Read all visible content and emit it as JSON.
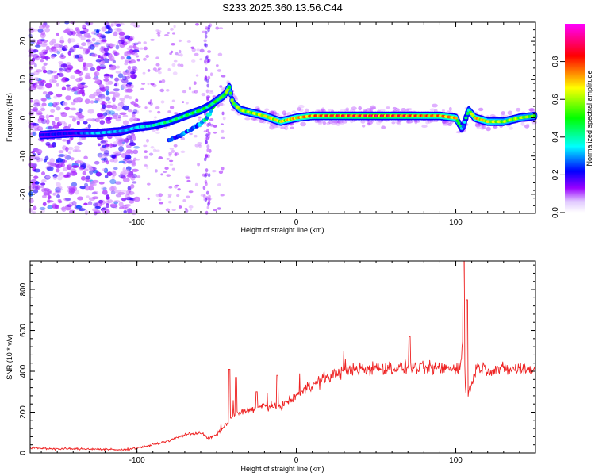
{
  "title": "S233.2025.360.13.56.C44",
  "chart_data": [
    {
      "type": "heatmap",
      "title": "S233.2025.360.13.56.C44",
      "xlabel": "Height of straight line (km)",
      "ylabel": "Frequency (Hz)",
      "xlim": [
        -167,
        150
      ],
      "ylim": [
        -25,
        25
      ],
      "xticks": [
        -100,
        0,
        100
      ],
      "yticks": [
        -20,
        -10,
        0,
        10,
        20
      ],
      "xtick_labels": [
        "-100",
        "0",
        "100"
      ],
      "ytick_labels": [
        "-20",
        "-10",
        "0",
        "10",
        "20"
      ],
      "colorbar": {
        "label": "Normalized spectral amplitude",
        "range": [
          0,
          1
        ],
        "ticks": [
          "0.0",
          "0.2",
          "0.4",
          "0.6",
          "0.8"
        ],
        "colors": [
          "#ffffff",
          "#9900ff",
          "#0000ff",
          "#00ffff",
          "#00ff00",
          "#ffff00",
          "#ff0000",
          "#ff00ff"
        ]
      },
      "ridge": {
        "x": [
          -160,
          -140,
          -125,
          -110,
          -100,
          -90,
          -80,
          -70,
          -60,
          -55,
          -50,
          -45,
          -42,
          -40,
          -35,
          -30,
          -20,
          -10,
          0,
          10,
          20,
          30,
          40,
          50,
          60,
          70,
          80,
          90,
          100,
          104,
          108,
          112,
          120,
          130,
          140,
          150
        ],
        "y": [
          -4.5,
          -4,
          -4,
          -3.5,
          -2.5,
          -2,
          -1,
          0.5,
          2,
          3,
          4.5,
          6,
          8,
          4,
          2,
          1.5,
          0.5,
          -1,
          0,
          0.5,
          0.5,
          0.5,
          0.5,
          0.5,
          0.5,
          0.5,
          0.5,
          0.5,
          0,
          -3,
          2,
          0,
          -1,
          -1,
          0,
          0.5
        ],
        "amplitude": [
          0.3,
          0.3,
          0.45,
          0.4,
          0.45,
          0.5,
          0.55,
          0.55,
          0.6,
          0.55,
          0.6,
          0.65,
          0.7,
          0.65,
          0.7,
          0.7,
          0.75,
          0.75,
          0.8,
          0.85,
          0.9,
          0.9,
          0.9,
          0.95,
          0.9,
          0.9,
          0.85,
          0.85,
          0.8,
          0.4,
          0.6,
          0.8,
          0.75,
          0.7,
          0.7,
          0.65
        ]
      },
      "secondary_ridge": {
        "x": [
          -80,
          -70,
          -62,
          -56,
          -52
        ],
        "y": [
          -6,
          -4,
          -2,
          0,
          3
        ],
        "amplitude": [
          0.3,
          0.35,
          0.4,
          0.45,
          0.5
        ]
      },
      "noise_region_x": [
        -167,
        -100
      ]
    },
    {
      "type": "line",
      "xlabel": "Height of straight line (km)",
      "ylabel": "SNR (10 * v/v)",
      "xlim": [
        -167,
        150
      ],
      "ylim": [
        0,
        940
      ],
      "xticks": [
        -100,
        0,
        100
      ],
      "yticks": [
        0,
        200,
        400,
        600,
        800
      ],
      "xtick_labels": [
        "-100",
        "0",
        "100"
      ],
      "ytick_labels": [
        "0",
        "200",
        "400",
        "600",
        "800"
      ],
      "series": [
        {
          "name": "SNR",
          "color": "#ee2222",
          "x": [
            -167,
            -150,
            -130,
            -110,
            -100,
            -90,
            -80,
            -70,
            -60,
            -55,
            -50,
            -45,
            -40,
            -35,
            -30,
            -25,
            -20,
            -15,
            -10,
            -5,
            0,
            5,
            10,
            15,
            20,
            25,
            30,
            35,
            40,
            50,
            60,
            70,
            80,
            90,
            100,
            103,
            105,
            106,
            107,
            108,
            110,
            112,
            115,
            120,
            130,
            140,
            150
          ],
          "values": [
            25,
            20,
            20,
            15,
            25,
            40,
            60,
            90,
            100,
            70,
            90,
            130,
            180,
            200,
            210,
            220,
            230,
            220,
            230,
            250,
            280,
            310,
            330,
            350,
            370,
            390,
            400,
            405,
            410,
            415,
            415,
            420,
            415,
            415,
            420,
            420,
            600,
            330,
            250,
            300,
            330,
            410,
            420,
            410,
            410,
            410,
            410
          ],
          "spikes": [
            {
              "x": -42,
              "value": 410
            },
            {
              "x": -38,
              "value": 370
            },
            {
              "x": -25,
              "value": 300
            },
            {
              "x": -12,
              "value": 380
            },
            {
              "x": 71,
              "value": 570
            },
            {
              "x": 105,
              "value": 940
            },
            {
              "x": 107,
              "value": 750
            }
          ]
        }
      ]
    }
  ]
}
